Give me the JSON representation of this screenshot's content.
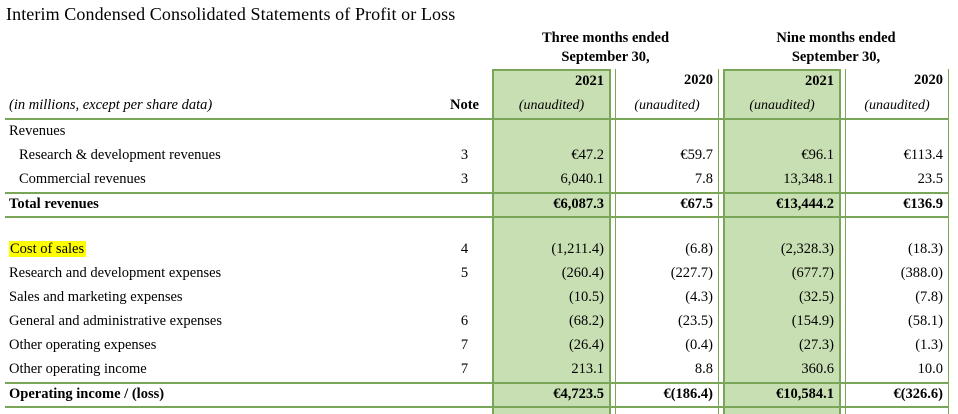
{
  "title": "Interim Condensed Consolidated Statements of Profit or Loss",
  "header": {
    "period_groups": [
      {
        "line1": "Three months ended",
        "line2": "September 30,"
      },
      {
        "line1": "Nine months ended",
        "line2": "September 30,"
      }
    ],
    "year_columns": [
      "2021",
      "2020",
      "2021",
      "2020"
    ],
    "unaudited_label": "(unaudited)",
    "meta_label": "(in millions, except per share data)",
    "note_header": "Note"
  },
  "rows": [
    {
      "label": "Revenues",
      "note": "",
      "values": [
        "",
        "",
        "",
        ""
      ],
      "kind": "section"
    },
    {
      "label": "Research & development revenues",
      "note": "3",
      "values": [
        "€47.2",
        "€59.7",
        "€96.1",
        "€113.4"
      ],
      "kind": "indent"
    },
    {
      "label": "Commercial revenues",
      "note": "3",
      "values": [
        "6,040.1",
        "7.8",
        "13,348.1",
        "23.5"
      ],
      "kind": "indent"
    },
    {
      "label": "Total revenues",
      "note": "",
      "values": [
        "€6,087.3",
        "€67.5",
        "€13,444.2",
        "€136.9"
      ],
      "kind": "total"
    },
    {
      "label": "",
      "note": "",
      "values": [
        "",
        "",
        "",
        ""
      ],
      "kind": "spacer"
    },
    {
      "label": "Cost of sales",
      "note": "4",
      "values": [
        "(1,211.4)",
        "(6.8)",
        "(2,328.3)",
        "(18.3)"
      ],
      "kind": "highlight"
    },
    {
      "label": "Research and development expenses",
      "note": "5",
      "values": [
        "(260.4)",
        "(227.7)",
        "(677.7)",
        "(388.0)"
      ],
      "kind": "normal"
    },
    {
      "label": "Sales and marketing expenses",
      "note": "",
      "values": [
        "(10.5)",
        "(4.3)",
        "(32.5)",
        "(7.8)"
      ],
      "kind": "normal"
    },
    {
      "label": "General and administrative expenses",
      "note": "6",
      "values": [
        "(68.2)",
        "(23.5)",
        "(154.9)",
        "(58.1)"
      ],
      "kind": "normal"
    },
    {
      "label": "Other operating expenses",
      "note": "7",
      "values": [
        "(26.4)",
        "(0.4)",
        "(27.3)",
        "(1.3)"
      ],
      "kind": "normal"
    },
    {
      "label": "Other operating income",
      "note": "7",
      "values": [
        "213.1",
        "8.8",
        "360.6",
        "10.0"
      ],
      "kind": "normal"
    },
    {
      "label": "Operating income / (loss)",
      "note": "",
      "values": [
        "€4,723.5",
        "€(186.4)",
        "€10,584.1",
        "€(326.6)"
      ],
      "kind": "total"
    },
    {
      "label": "",
      "note": "",
      "values": [
        "",
        "",
        "",
        ""
      ],
      "kind": "bottom-partial"
    }
  ],
  "colors": {
    "band_fill": "#c8dfb3",
    "band_border": "#7aa757",
    "highlight_yellow": "#ffff00",
    "text": "#000000"
  }
}
